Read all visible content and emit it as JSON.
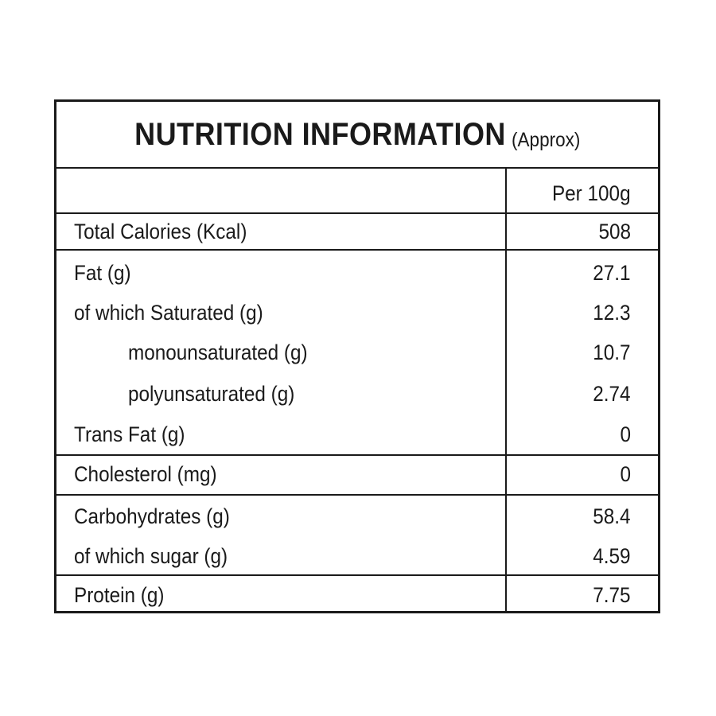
{
  "panel": {
    "title": "NUTRITION INFORMATION",
    "subtitle": "(Approx)",
    "column_header": "Per 100g"
  },
  "rows": [
    {
      "label": "Total Calories (Kcal)",
      "value": "508"
    },
    {
      "label": "Fat (g)",
      "value": "27.1"
    },
    {
      "label": "of which Saturated (g)",
      "value": "12.3"
    },
    {
      "label": "monounsaturated (g)",
      "value": "10.7"
    },
    {
      "label": "polyunsaturated (g)",
      "value": "2.74"
    },
    {
      "label": "Trans Fat (g)",
      "value": "0"
    },
    {
      "label": "Cholesterol (mg)",
      "value": "0"
    },
    {
      "label": "Carbohydrates (g)",
      "value": "58.4"
    },
    {
      "label": "of which sugar (g)",
      "value": "4.59"
    },
    {
      "label": "Protein (g)",
      "value": "7.75"
    }
  ]
}
